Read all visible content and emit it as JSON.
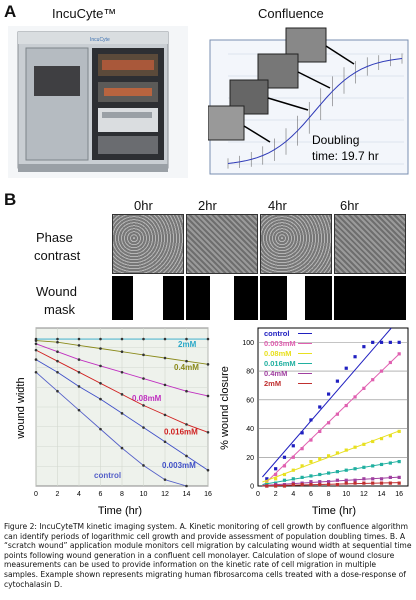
{
  "panel_a": {
    "letter": "A",
    "title_left": "IncuCyte™",
    "title_right": "Confluence",
    "doubling_line1": "Doubling",
    "doubling_line2": "time: 19.7 hr",
    "incubator_brand": "IncuCyte"
  },
  "panel_b": {
    "letter": "B",
    "time_headers": [
      "0hr",
      "2hr",
      "4hr",
      "6hr"
    ],
    "row1_label_1": "Phase",
    "row1_label_2": "contrast",
    "row2_label_1": "Wound",
    "row2_label_2": "mask",
    "wound_open_fraction": [
      0.42,
      0.33,
      0.25,
      0.0
    ]
  },
  "chart_data": [
    {
      "type": "line",
      "xlabel": "Time (hr)",
      "ylabel": "wound width",
      "x_ticks": [
        0,
        2,
        4,
        6,
        8,
        10,
        12,
        14,
        16
      ],
      "xlim": [
        0,
        16
      ],
      "ylim": [
        0,
        1.0
      ],
      "grid": true,
      "series": [
        {
          "name": "2mM",
          "color": "#2aa8c8",
          "x": [
            0,
            2,
            4,
            6,
            8,
            10,
            12,
            14,
            16
          ],
          "y": [
            0.93,
            0.93,
            0.93,
            0.93,
            0.93,
            0.93,
            0.93,
            0.93,
            0.93
          ]
        },
        {
          "name": "0.4mM",
          "color": "#8a8a1a",
          "x": [
            0,
            2,
            4,
            6,
            8,
            10,
            12,
            14,
            16
          ],
          "y": [
            0.92,
            0.91,
            0.89,
            0.87,
            0.85,
            0.83,
            0.81,
            0.79,
            0.77
          ]
        },
        {
          "name": "0.08mM",
          "color": "#c030c0",
          "x": [
            0,
            2,
            4,
            6,
            8,
            10,
            12,
            14,
            16
          ],
          "y": [
            0.9,
            0.85,
            0.8,
            0.76,
            0.72,
            0.68,
            0.64,
            0.6,
            0.57
          ]
        },
        {
          "name": "0.016mM",
          "color": "#d02020",
          "x": [
            0,
            2,
            4,
            6,
            8,
            10,
            12,
            14,
            16
          ],
          "y": [
            0.86,
            0.79,
            0.72,
            0.65,
            0.58,
            0.51,
            0.45,
            0.39,
            0.34
          ]
        },
        {
          "name": "0.003mM",
          "color": "#4050c8",
          "x": [
            0,
            2,
            4,
            6,
            8,
            10,
            12,
            14,
            16
          ],
          "y": [
            0.8,
            0.72,
            0.63,
            0.55,
            0.46,
            0.37,
            0.28,
            0.19,
            0.1
          ]
        },
        {
          "name": "control",
          "color": "#5560c8",
          "x": [
            0,
            2,
            4,
            6,
            8,
            10,
            12,
            14
          ],
          "y": [
            0.72,
            0.6,
            0.48,
            0.36,
            0.24,
            0.13,
            0.04,
            0.0
          ]
        }
      ]
    },
    {
      "type": "scatter",
      "xlabel": "Time (hr)",
      "ylabel": "% wound closure",
      "x_ticks": [
        0,
        2,
        4,
        6,
        8,
        10,
        12,
        14,
        16
      ],
      "y_ticks": [
        0,
        20,
        40,
        60,
        80,
        100
      ],
      "xlim": [
        0,
        17
      ],
      "ylim": [
        0,
        110
      ],
      "grid": true,
      "legend": "top-left",
      "series": [
        {
          "name": "control",
          "color": "#2020c0",
          "x": [
            1,
            2,
            3,
            4,
            5,
            6,
            7,
            8,
            9,
            10,
            11,
            12,
            13,
            14,
            15,
            16
          ],
          "y": [
            5,
            12,
            20,
            28,
            37,
            46,
            55,
            64,
            73,
            82,
            90,
            97,
            100,
            100,
            100,
            100
          ]
        },
        {
          "name": "0.003mM",
          "color": "#e060b0",
          "x": [
            1,
            2,
            3,
            4,
            5,
            6,
            7,
            8,
            9,
            10,
            11,
            12,
            13,
            14,
            15,
            16
          ],
          "y": [
            3,
            8,
            14,
            20,
            26,
            32,
            38,
            44,
            50,
            56,
            62,
            68,
            74,
            80,
            86,
            92
          ]
        },
        {
          "name": "0.08mM",
          "color": "#e8e020",
          "x": [
            1,
            2,
            3,
            4,
            5,
            6,
            7,
            8,
            9,
            10,
            11,
            12,
            13,
            14,
            15,
            16
          ],
          "y": [
            2,
            5,
            8,
            11,
            14,
            17,
            19,
            21,
            23,
            25,
            27,
            29,
            31,
            33,
            35,
            38
          ]
        },
        {
          "name": "0.016mM",
          "color": "#20b0a0",
          "x": [
            1,
            2,
            3,
            4,
            5,
            6,
            7,
            8,
            9,
            10,
            11,
            12,
            13,
            14,
            15,
            16
          ],
          "y": [
            1,
            2,
            4,
            5,
            6,
            7,
            8,
            9,
            10,
            11,
            12,
            13,
            14,
            15,
            16,
            17
          ]
        },
        {
          "name": "0.4mM",
          "color": "#a040a0",
          "x": [
            1,
            2,
            3,
            4,
            5,
            6,
            7,
            8,
            9,
            10,
            11,
            12,
            13,
            14,
            15,
            16
          ],
          "y": [
            0,
            1,
            1,
            2,
            2,
            3,
            3,
            3,
            4,
            4,
            4,
            5,
            5,
            5,
            6,
            6
          ]
        },
        {
          "name": "2mM",
          "color": "#c03030",
          "x": [
            1,
            2,
            3,
            4,
            5,
            6,
            7,
            8,
            9,
            10,
            11,
            12,
            13,
            14,
            15,
            16
          ],
          "y": [
            0,
            0,
            0,
            1,
            1,
            1,
            1,
            1,
            1,
            2,
            2,
            2,
            2,
            2,
            2,
            2
          ]
        }
      ]
    }
  ],
  "caption": "Figure 2: IncuCyteTM kinetic imaging system. A. Kinetic monitoring of cell growth by confluence algorithm can identify periods of logarithmic cell growth and provide assessment of population doubling times. B. A “scratch wound” application module monitors cell migration by calculating wound width at sequential time points following wound generation in a confluent cell monolayer. Calculation of slope of wound closure measurements can be used to provide information on the kinetic rate of cell migration in multiple samples. Example shown represents migrating human fibrosarcoma cells treated with a dose-response of cytochalasin D."
}
